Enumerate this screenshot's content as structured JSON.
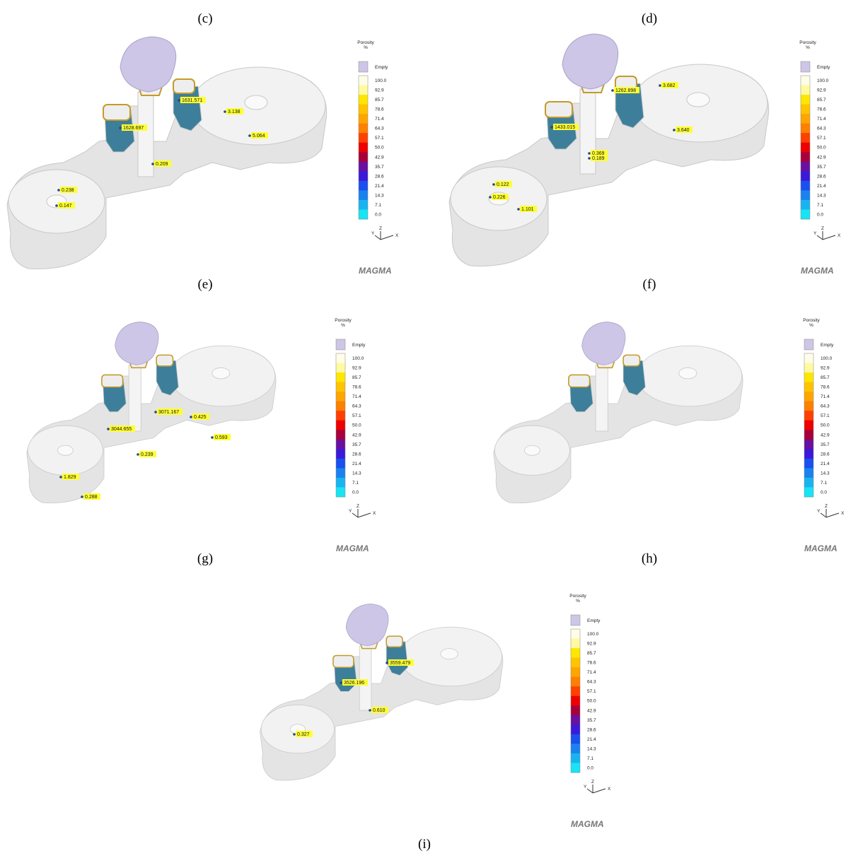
{
  "panel_labels": [
    "(c)",
    "(d)",
    "(e)",
    "(f)",
    "(g)",
    "(h)",
    "(i)"
  ],
  "panels": [
    {
      "callouts": [
        "1631.571",
        "3.138",
        "1628.697",
        "5.064",
        "0.209",
        "0.238",
        "0.147"
      ]
    },
    {
      "callouts": [
        "1262.898",
        "3.682",
        "1433.015",
        "3.640",
        "0.369",
        "0.189",
        "0.122",
        "0.226",
        "1.101"
      ]
    },
    {
      "callouts": [
        "3071.167",
        "0.425",
        "3044.655",
        "0.593",
        "0.239",
        "1.829",
        "0.288"
      ]
    },
    {
      "callouts": []
    },
    {
      "callouts": [
        "3559.479",
        "3526.196",
        "0.610",
        "0.327"
      ]
    }
  ],
  "legend": {
    "title": "Porosity",
    "unit": "%",
    "empty": "Empty",
    "scale": [
      "100.0",
      "92.9",
      "85.7",
      "78.6",
      "71.4",
      "64.3",
      "57.1",
      "50.0",
      "42.9",
      "35.7",
      "28.6",
      "21.4",
      "14.3",
      "7.1",
      "0.0"
    ]
  },
  "axes": [
    "Y",
    "Z",
    "X"
  ],
  "logo": "MAGMA"
}
